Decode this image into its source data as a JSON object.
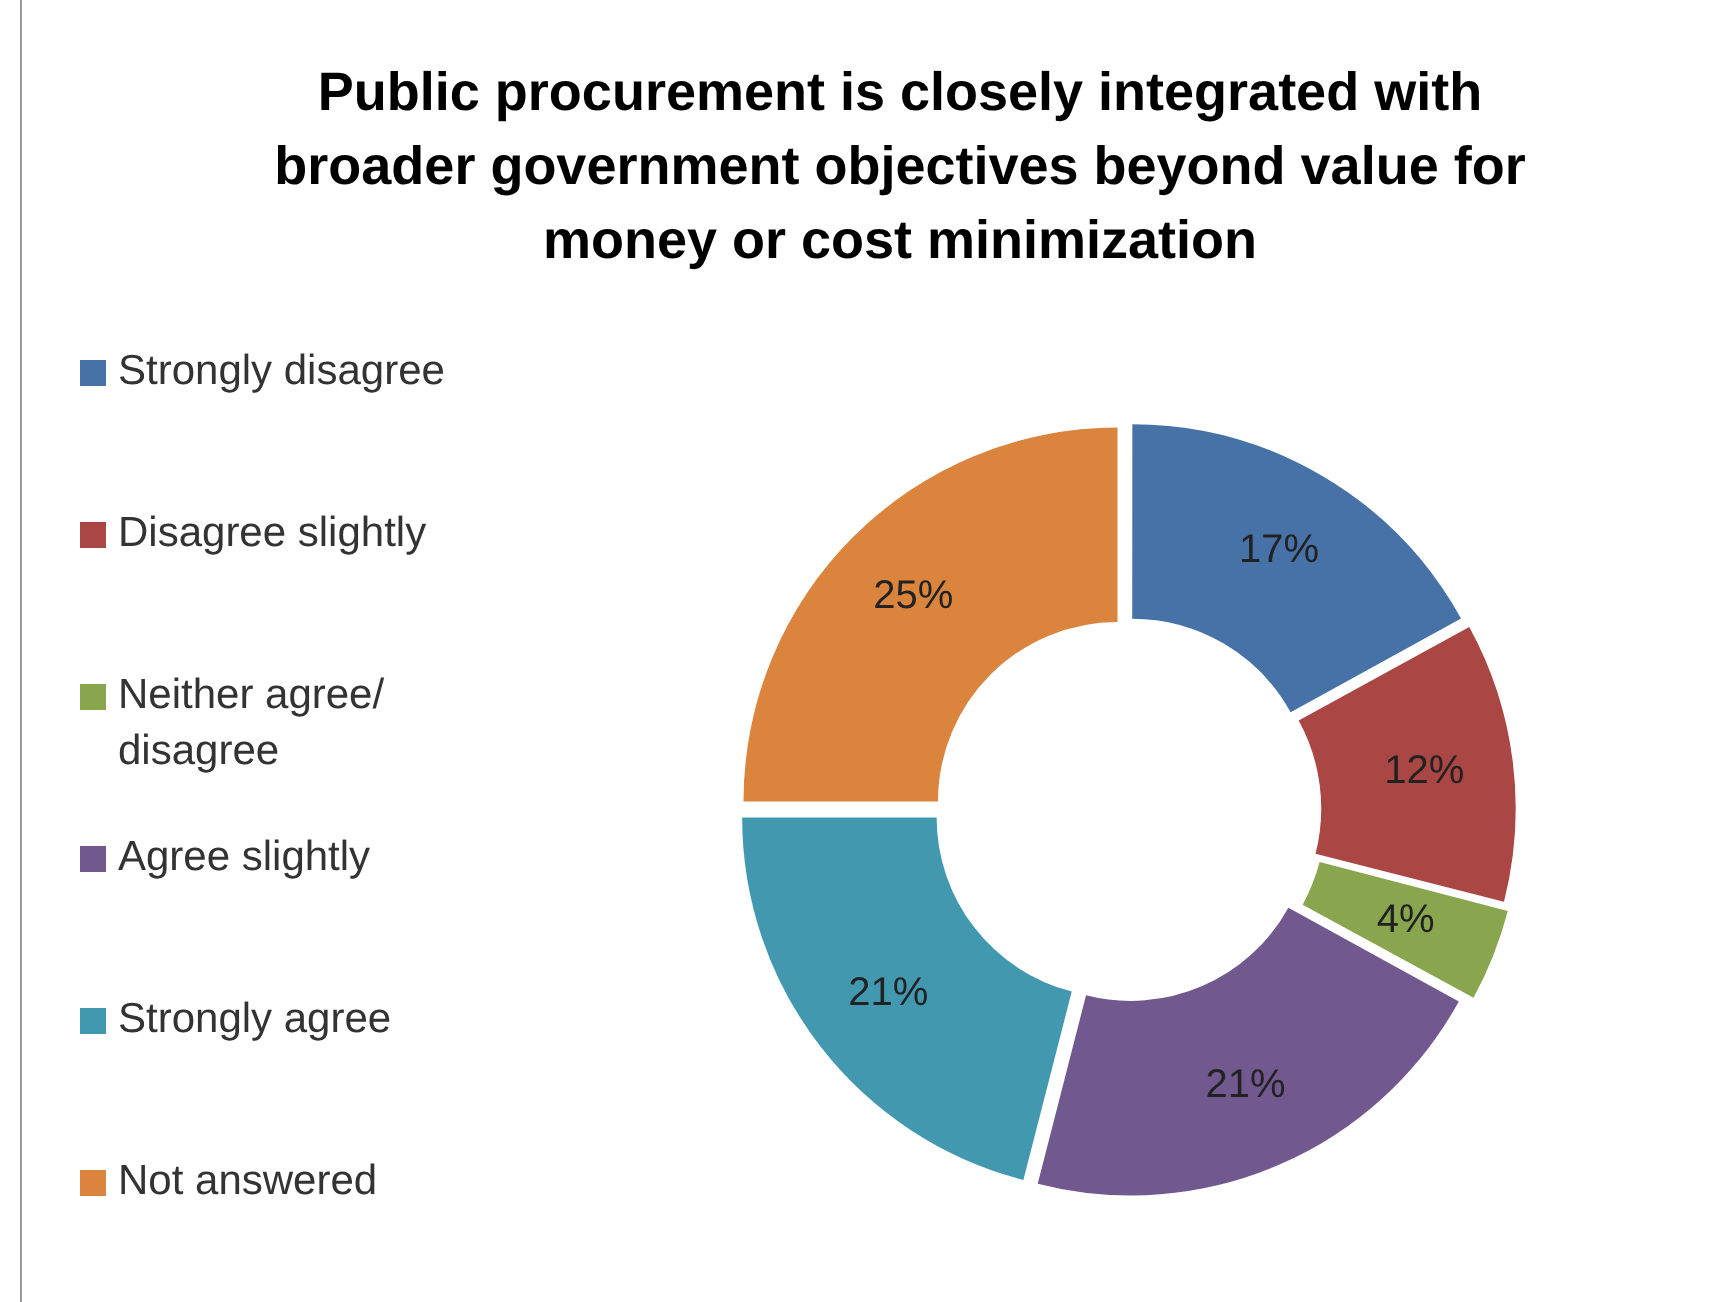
{
  "chart_data": {
    "type": "donut",
    "title": "Public procurement is closely integrated with broader government objectives beyond value for money or cost minimization",
    "categories": [
      "Strongly disagree",
      "Disagree slightly",
      "Neither agree/ disagree",
      "Agree slightly",
      "Strongly agree",
      "Not answered"
    ],
    "values": [
      17,
      12,
      4,
      21,
      21,
      25
    ],
    "value_labels": [
      "17%",
      "12%",
      "4%",
      "21%",
      "21%",
      "25%"
    ],
    "colors": [
      "#4672a8",
      "#aa4643",
      "#89a54e",
      "#71588f",
      "#4198af",
      "#db843d"
    ],
    "legend": "left"
  }
}
